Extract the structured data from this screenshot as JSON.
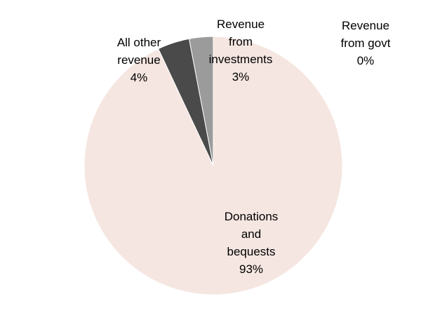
{
  "chart_data": {
    "type": "pie",
    "title": "",
    "slices": [
      {
        "label_lines": [
          "Revenue",
          "from govt"
        ],
        "percent_text": "0%",
        "value": 0,
        "color": "#bfbfbf"
      },
      {
        "label_lines": [
          "Donations",
          "and",
          "bequests"
        ],
        "percent_text": "93%",
        "value": 93,
        "color": "#f5e6e1"
      },
      {
        "label_lines": [
          "All other",
          "revenue"
        ],
        "percent_text": "4%",
        "value": 4,
        "color": "#4a4a4a"
      },
      {
        "label_lines": [
          "Revenue",
          "from",
          "investments"
        ],
        "percent_text": "3%",
        "value": 3,
        "color": "#9b9b9b"
      }
    ],
    "legend": false
  }
}
